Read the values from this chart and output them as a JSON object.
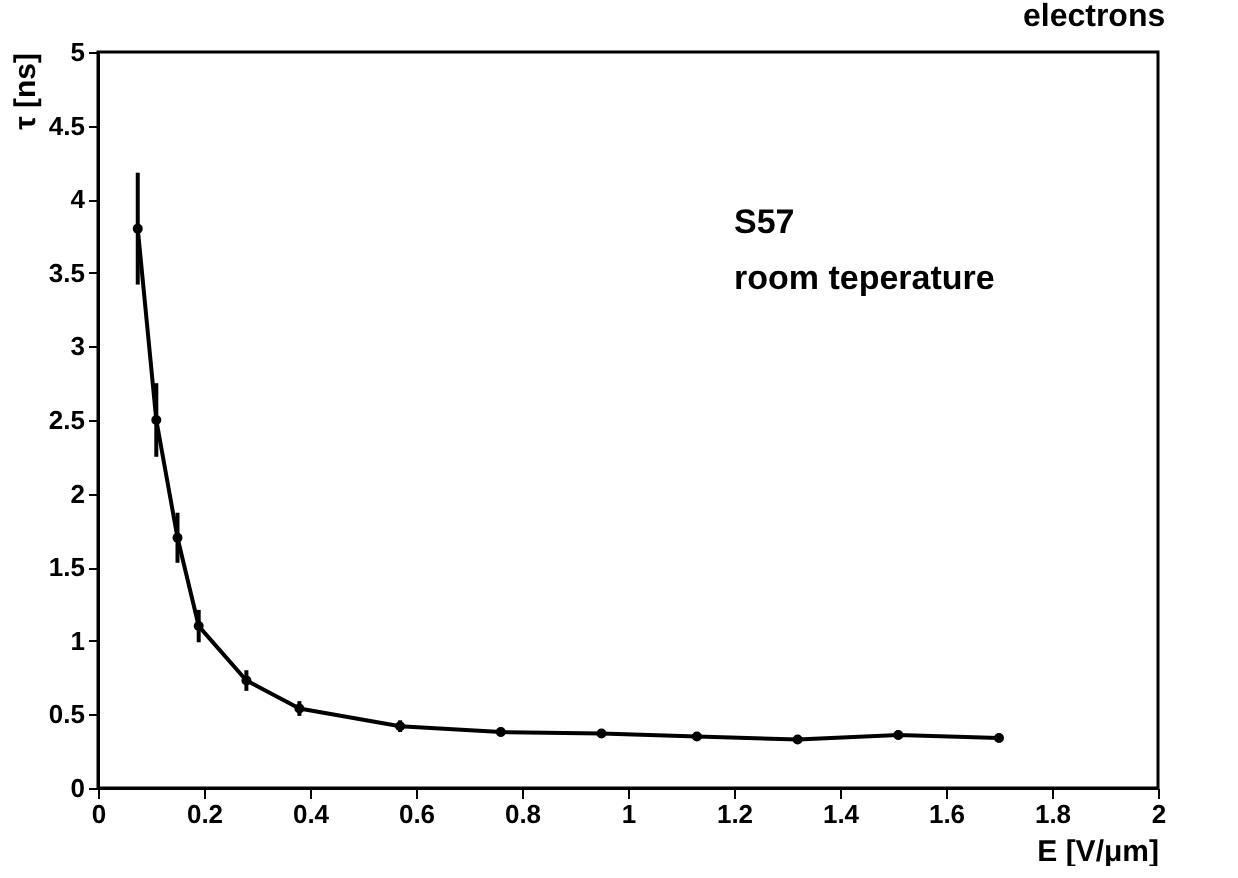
{
  "chart_data": {
    "type": "line",
    "title": "electrons",
    "xlabel": "E [V/μm]",
    "ylabel": "τ [ns]",
    "annotations": [
      "S57",
      "room teperature"
    ],
    "x": [
      0.075,
      0.11,
      0.15,
      0.19,
      0.28,
      0.38,
      0.57,
      0.76,
      0.95,
      1.13,
      1.32,
      1.51,
      1.7
    ],
    "series": [
      {
        "color": "#000000",
        "values": [
          3.8,
          2.5,
          1.7,
          1.1,
          0.73,
          0.54,
          0.42,
          0.38,
          0.37,
          0.35,
          0.33,
          0.36,
          0.34
        ],
        "errors": [
          0.38,
          0.25,
          0.17,
          0.11,
          0.07,
          0.05,
          0.04,
          0.03,
          0.03,
          0.03,
          0.03,
          0.03,
          0.03
        ]
      }
    ],
    "xlim": [
      0,
      2
    ],
    "xticks": [
      0,
      0.2,
      0.4,
      0.6,
      0.8,
      1,
      1.2,
      1.4,
      1.6,
      1.8,
      2
    ],
    "ylim": [
      0,
      5
    ],
    "yticks": [
      0,
      0.5,
      1,
      1.5,
      2,
      2.5,
      3,
      3.5,
      4,
      4.5,
      5
    ],
    "grid": false,
    "legend": false,
    "marker": "circle",
    "line_style": "solid"
  }
}
